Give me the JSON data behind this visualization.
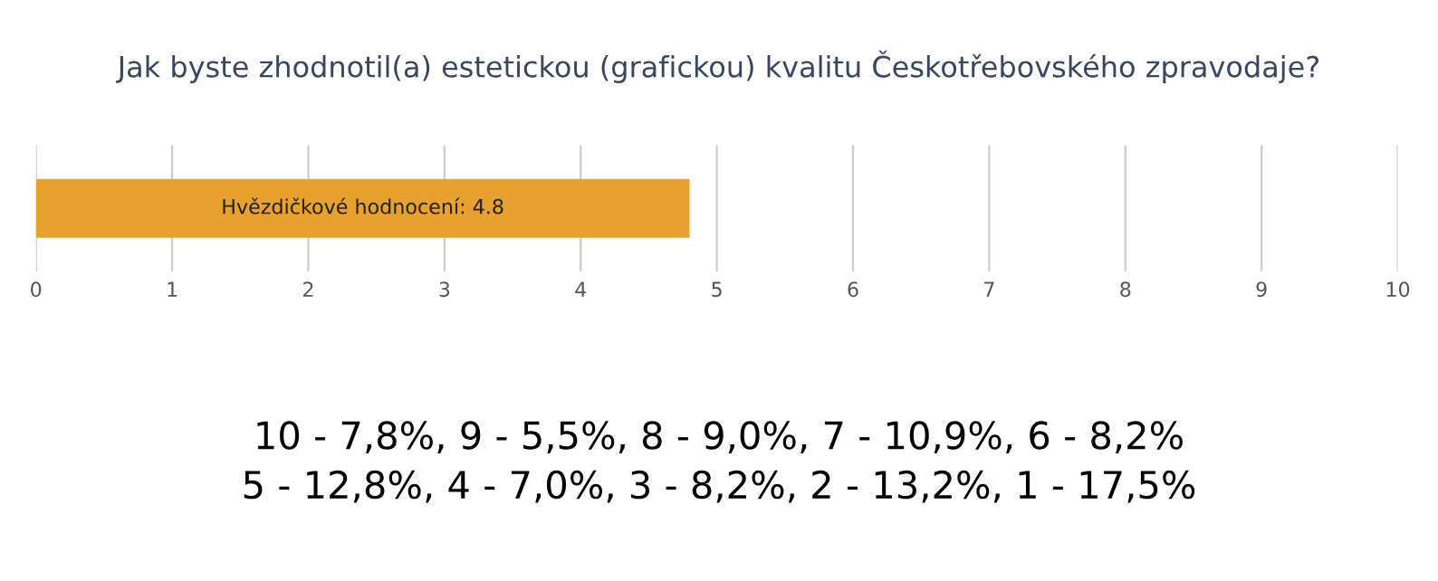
{
  "chart_data": {
    "type": "bar",
    "orientation": "horizontal",
    "title": "Jak byste zhodnotil(a) estetickou (grafickou) kvalitu Českotřebovského zpravodaje?",
    "categories": [
      null
    ],
    "values": [
      4.8
    ],
    "color": "#e8a02e",
    "value_labels": [
      "Hvězdičkové hodnocení: 4.8"
    ],
    "xlim": [
      0,
      10
    ],
    "xticks": [
      0,
      1,
      2,
      3,
      4,
      5,
      6,
      7,
      8,
      9,
      10
    ],
    "grid": "x",
    "tick_labels": "x",
    "annotations": [
      "10 - 7,8%, 9 - 5,5%, 8 - 9,0%, 7 - 10,9%, 6 - 8,2%",
      "5 - 12,8%, 4 - 7,0%, 3 - 8,2%, 2 - 13,2%, 1 - 17,5%"
    ]
  }
}
